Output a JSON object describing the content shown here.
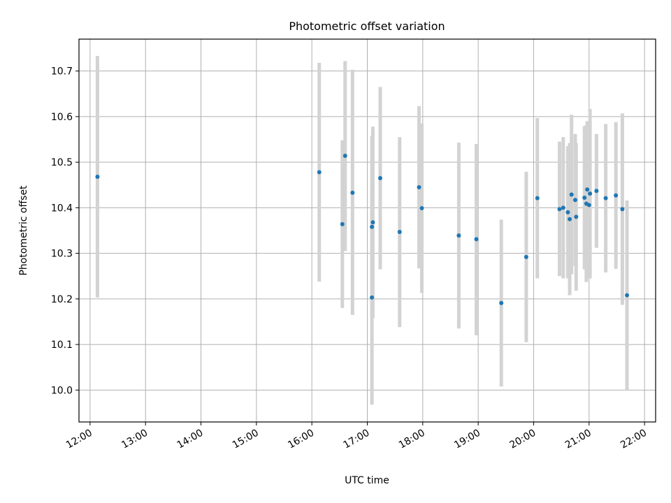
{
  "chart_data": {
    "type": "scatter",
    "title": "Photometric offset variation",
    "xlabel": "UTC time",
    "ylabel": "Photometric offset",
    "x_ticks": [
      "12:00",
      "13:00",
      "14:00",
      "15:00",
      "16:00",
      "17:00",
      "18:00",
      "19:00",
      "20:00",
      "21:00",
      "22:00"
    ],
    "y_ticks": [
      "10.0",
      "10.1",
      "10.2",
      "10.3",
      "10.4",
      "10.5",
      "10.6",
      "10.7"
    ],
    "xlim": [
      "11:48",
      "22:12"
    ],
    "ylim": [
      9.93,
      10.77
    ],
    "grid": true,
    "colors": {
      "point": "#1f77b4",
      "errorbar": "#d3d3d3",
      "grid": "#b0b0b0"
    },
    "points": [
      {
        "x": "12:08",
        "y": 10.468,
        "lo": 10.203,
        "hi": 10.733
      },
      {
        "x": "16:08",
        "y": 10.478,
        "lo": 10.238,
        "hi": 10.718
      },
      {
        "x": "16:33",
        "y": 10.364,
        "lo": 10.18,
        "hi": 10.548
      },
      {
        "x": "16:36",
        "y": 10.514,
        "lo": 10.305,
        "hi": 10.722
      },
      {
        "x": "16:44",
        "y": 10.433,
        "lo": 10.165,
        "hi": 10.703
      },
      {
        "x": "17:05",
        "y": 10.203,
        "lo": 9.968,
        "hi": 10.438
      },
      {
        "x": "17:05",
        "y": 10.358,
        "lo": 10.158,
        "hi": 10.558
      },
      {
        "x": "17:06",
        "y": 10.368,
        "lo": 10.158,
        "hi": 10.578
      },
      {
        "x": "17:14",
        "y": 10.465,
        "lo": 10.265,
        "hi": 10.665
      },
      {
        "x": "17:35",
        "y": 10.347,
        "lo": 10.138,
        "hi": 10.555
      },
      {
        "x": "17:56",
        "y": 10.445,
        "lo": 10.267,
        "hi": 10.623
      },
      {
        "x": "17:59",
        "y": 10.399,
        "lo": 10.213,
        "hi": 10.585
      },
      {
        "x": "18:39",
        "y": 10.339,
        "lo": 10.135,
        "hi": 10.543
      },
      {
        "x": "18:58",
        "y": 10.331,
        "lo": 10.12,
        "hi": 10.54
      },
      {
        "x": "19:25",
        "y": 10.191,
        "lo": 10.008,
        "hi": 10.374
      },
      {
        "x": "19:52",
        "y": 10.292,
        "lo": 10.105,
        "hi": 10.479
      },
      {
        "x": "20:04",
        "y": 10.421,
        "lo": 10.245,
        "hi": 10.597
      },
      {
        "x": "20:28",
        "y": 10.397,
        "lo": 10.25,
        "hi": 10.545
      },
      {
        "x": "20:32",
        "y": 10.4,
        "lo": 10.245,
        "hi": 10.555
      },
      {
        "x": "20:37",
        "y": 10.39,
        "lo": 10.245,
        "hi": 10.535
      },
      {
        "x": "20:39",
        "y": 10.375,
        "lo": 10.208,
        "hi": 10.542
      },
      {
        "x": "20:41",
        "y": 10.429,
        "lo": 10.254,
        "hi": 10.604
      },
      {
        "x": "20:45",
        "y": 10.417,
        "lo": 10.272,
        "hi": 10.562
      },
      {
        "x": "20:46",
        "y": 10.38,
        "lo": 10.218,
        "hi": 10.542
      },
      {
        "x": "20:55",
        "y": 10.422,
        "lo": 10.265,
        "hi": 10.579
      },
      {
        "x": "20:57",
        "y": 10.409,
        "lo": 10.237,
        "hi": 10.581
      },
      {
        "x": "20:58",
        "y": 10.44,
        "lo": 10.29,
        "hi": 10.59
      },
      {
        "x": "21:00",
        "y": 10.406,
        "lo": 10.245,
        "hi": 10.567
      },
      {
        "x": "21:01",
        "y": 10.431,
        "lo": 10.245,
        "hi": 10.617
      },
      {
        "x": "21:08",
        "y": 10.437,
        "lo": 10.312,
        "hi": 10.562
      },
      {
        "x": "21:18",
        "y": 10.421,
        "lo": 10.258,
        "hi": 10.584
      },
      {
        "x": "21:29",
        "y": 10.427,
        "lo": 10.266,
        "hi": 10.588
      },
      {
        "x": "21:36",
        "y": 10.397,
        "lo": 10.187,
        "hi": 10.607
      },
      {
        "x": "21:41",
        "y": 10.208,
        "lo": 10.0,
        "hi": 10.416
      }
    ]
  }
}
